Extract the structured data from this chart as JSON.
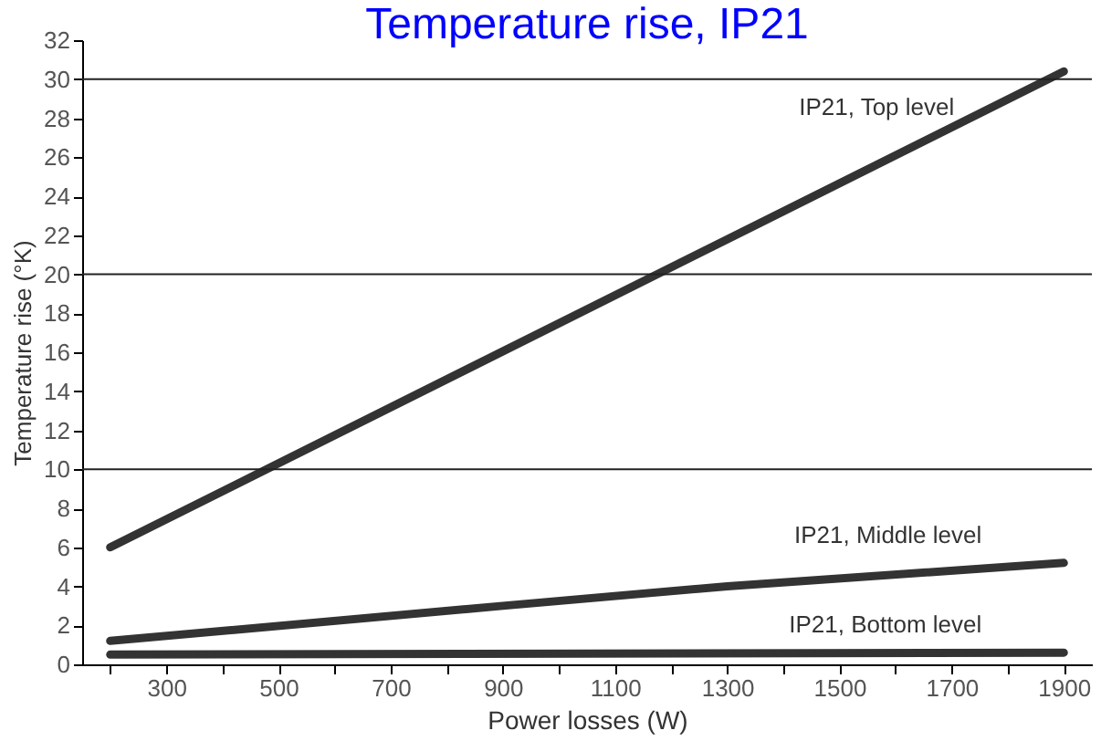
{
  "chart_data": {
    "type": "line",
    "title": "Temperature rise, IP21",
    "xlabel": "Power losses (W)",
    "ylabel": "Temperature rise (°K)",
    "series": [
      {
        "name": "IP21, Top level",
        "color": "#333333",
        "x": [
          200,
          1900
        ],
        "values": [
          6,
          30.4
        ]
      },
      {
        "name": "IP21, Middle level",
        "color": "#333333",
        "x": [
          200,
          900,
          1300,
          1900
        ],
        "values": [
          1.2,
          3.0,
          4.0,
          5.2
        ]
      },
      {
        "name": "IP21, Bottom level",
        "color": "#333333",
        "x": [
          200,
          1900
        ],
        "values": [
          0.5,
          0.6
        ]
      }
    ],
    "xlim": [
      150,
      1950
    ],
    "xticks": [
      {
        "value": 200,
        "label": null
      },
      300,
      {
        "value": 400,
        "label": null
      },
      500,
      {
        "value": 600,
        "label": null
      },
      700,
      {
        "value": 800,
        "label": null
      },
      900,
      {
        "value": 1000,
        "label": null
      },
      1100,
      {
        "value": 1200,
        "label": null
      },
      1300,
      {
        "value": 1400,
        "label": null
      },
      1500,
      {
        "value": 1600,
        "label": null
      },
      1700,
      {
        "value": 1800,
        "label": null
      },
      1900
    ],
    "ylim": [
      0,
      32
    ],
    "yticks": [
      0,
      2,
      4,
      6,
      8,
      10,
      12,
      14,
      16,
      18,
      20,
      22,
      24,
      26,
      28,
      30,
      32
    ],
    "ref_lines": [
      {
        "axis": "y",
        "value": 10
      },
      {
        "axis": "y",
        "value": 20
      },
      {
        "axis": "y",
        "value": 30
      }
    ],
    "grid": false,
    "legend": false,
    "marker": "none",
    "line_style": "solid"
  }
}
